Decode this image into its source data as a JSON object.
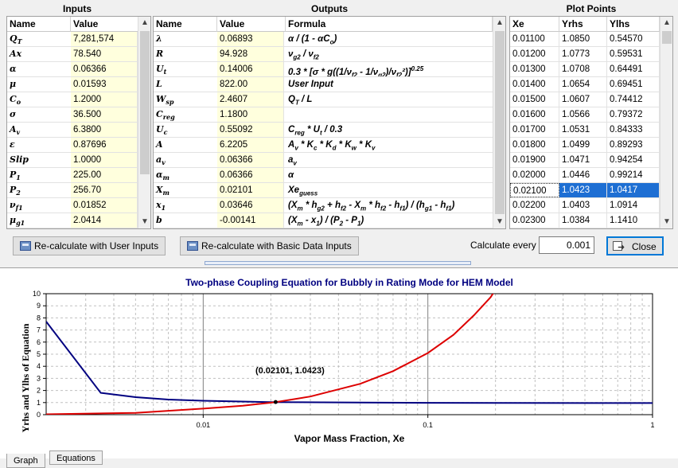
{
  "headers": {
    "inputs": "Inputs",
    "outputs": "Outputs",
    "plot_points": "Plot Points"
  },
  "inputs_table": {
    "columns": [
      "Name",
      "Value"
    ],
    "rows": [
      {
        "name": "Q",
        "sub": "T",
        "value": "7,281,574"
      },
      {
        "name": "Ax",
        "sub": "",
        "value": "78.540"
      },
      {
        "name": "α",
        "sub": "",
        "value": "0.06366"
      },
      {
        "name": "μ",
        "sub": "",
        "value": "0.01593"
      },
      {
        "name": "C",
        "sub": "o",
        "value": "1.2000"
      },
      {
        "name": "σ",
        "sub": "",
        "value": "36.500"
      },
      {
        "name": "A",
        "sub": "v",
        "value": "6.3800"
      },
      {
        "name": "ε",
        "sub": "",
        "value": "0.87696"
      },
      {
        "name": "Slip",
        "sub": "",
        "value": "1.0000"
      },
      {
        "name": "P",
        "sub": "1",
        "value": "225.00"
      },
      {
        "name": "P",
        "sub": "2",
        "value": "256.70"
      },
      {
        "name": "ν",
        "sub": "f1",
        "value": "0.01852"
      },
      {
        "name": "μ",
        "sub": "g1",
        "value": "2.0414"
      }
    ]
  },
  "outputs_table": {
    "columns": [
      "Name",
      "Value",
      "Formula"
    ],
    "rows": [
      {
        "name": "λ",
        "sub": "",
        "value": "0.06893",
        "formula": "α / (1 - αC",
        "fsub": "o",
        "ftail": ")"
      },
      {
        "name": "R",
        "sub": "",
        "value": "94.928",
        "formula": "ν",
        "fsub": "g2",
        "ftail": " / ν",
        "fsub2": "f2",
        "ftail2": ""
      },
      {
        "name": "U",
        "sub": "t",
        "value": "0.14006",
        "formula": "0.3 * [σ * g((1/ν",
        "fsub": "f2",
        "ftail": " - 1/ν",
        "fsub2": "g2",
        "ftail2": ")/ν",
        "fsub3": "f2",
        "ftail3": "²)]",
        "fsup": "0.25"
      },
      {
        "name": "L",
        "sub": "",
        "value": "822.00",
        "formula": "User Input",
        "fsub": "",
        "ftail": ""
      },
      {
        "name": "W",
        "sub": "sp",
        "value": "2.4607",
        "formula": "Q",
        "fsub": "T",
        "ftail": " / L"
      },
      {
        "name": "C",
        "sub": "reg",
        "value": "1.1800",
        "formula": "",
        "fsub": "",
        "ftail": ""
      },
      {
        "name": "U",
        "sub": "c",
        "value": "0.55092",
        "formula": "C",
        "fsub": "reg",
        "ftail": " * U",
        "fsub2": "t",
        "ftail2": " / 0.3"
      },
      {
        "name": "A",
        "sub": "",
        "value": "6.2205",
        "formula": "A",
        "fsub": "v",
        "ftail": " * K",
        "fsub2": "c",
        "ftail2": " * K",
        "fsub3": "d",
        "ftail3": " * K",
        "fsub4": "w",
        "ftail4": " * K",
        "fsub5": "v",
        "ftail5": ""
      },
      {
        "name": "a",
        "sub": "v",
        "value": "0.06366",
        "formula": "a",
        "fsub": "v",
        "ftail": ""
      },
      {
        "name": "α",
        "sub": "m",
        "value": "0.06366",
        "formula": "α",
        "fsub": "",
        "ftail": ""
      },
      {
        "name": "X",
        "sub": "m",
        "value": "0.02101",
        "formula": "Xe",
        "fsub": "guess",
        "ftail": ""
      },
      {
        "name": "x",
        "sub": "1",
        "value": "0.03646",
        "formula": "(X",
        "fsub": "m",
        "ftail": " * h",
        "fsub2": "g2",
        "ftail2": " + h",
        "fsub3": "f2",
        "ftail3": " - X",
        "fsub4": "m",
        "ftail4": " * h",
        "fsub5": "f2",
        "ftail5": " - h",
        "fsub6": "f1",
        "ftail6": ") / (h",
        "fsub7": "g1",
        "ftail7": " - h",
        "fsub8": "f1",
        "ftail8": ")"
      },
      {
        "name": "b",
        "sub": "",
        "value": "-0.00141",
        "formula": "(X",
        "fsub": "m",
        "ftail": " - x",
        "fsub2": "1",
        "ftail2": ") / (P",
        "fsub3": "2",
        "ftail3": " - P",
        "fsub4": "1",
        "ftail4": ")"
      }
    ]
  },
  "plot_table": {
    "columns": [
      "Xe",
      "Yrhs",
      "Ylhs"
    ],
    "selected_index": 10,
    "rows": [
      [
        "0.01100",
        "1.0850",
        "0.54570"
      ],
      [
        "0.01200",
        "1.0773",
        "0.59531"
      ],
      [
        "0.01300",
        "1.0708",
        "0.64491"
      ],
      [
        "0.01400",
        "1.0654",
        "0.69451"
      ],
      [
        "0.01500",
        "1.0607",
        "0.74412"
      ],
      [
        "0.01600",
        "1.0566",
        "0.79372"
      ],
      [
        "0.01700",
        "1.0531",
        "0.84333"
      ],
      [
        "0.01800",
        "1.0499",
        "0.89293"
      ],
      [
        "0.01900",
        "1.0471",
        "0.94254"
      ],
      [
        "0.02000",
        "1.0446",
        "0.99214"
      ],
      [
        "0.02100",
        "1.0423",
        "1.0417"
      ],
      [
        "0.02200",
        "1.0403",
        "1.0914"
      ],
      [
        "0.02300",
        "1.0384",
        "1.1410"
      ]
    ]
  },
  "buttons": {
    "recalc_user": "Re-calculate with User Inputs",
    "recalc_basic": "Re-calculate with Basic Data Inputs",
    "calc_every_label": "Calculate every",
    "calc_every_value": "0.001",
    "close": "Close"
  },
  "tabs": [
    "Graph",
    "Equations"
  ],
  "colors": {
    "rhs": "#000080",
    "lhs": "#dd0000",
    "selected": "#1e6fd3",
    "title": "#000080"
  },
  "chart_data": {
    "type": "line",
    "title": "Two-phase Coupling Equation for Bubbly in Rating Mode for HEM Model",
    "xlabel": "Vapor Mass Fraction, Xe",
    "ylabel": "Yrhs and Ylhs of Equation",
    "x_scale": "log",
    "xlim": [
      0.002,
      1
    ],
    "ylim": [
      0,
      10
    ],
    "x_ticks": [
      "0.01",
      "0.1",
      "1"
    ],
    "y_ticks": [
      "0",
      "1",
      "2",
      "3",
      "4",
      "5",
      "6",
      "7",
      "8",
      "9",
      "10"
    ],
    "grid": true,
    "annotation": {
      "text": "(0.02101, 1.0423)",
      "x": 0.02101,
      "y": 1.0423
    },
    "series": [
      {
        "key": "rhs",
        "x": [
          0.002,
          0.0035,
          0.005,
          0.007,
          0.01,
          0.02,
          0.05,
          0.1,
          0.2,
          0.5,
          1
        ],
        "y": [
          7.7,
          1.8,
          1.45,
          1.25,
          1.15,
          1.04,
          1.0,
          0.98,
          0.97,
          0.96,
          0.96
        ]
      },
      {
        "key": "lhs",
        "x": [
          0.002,
          0.005,
          0.01,
          0.015,
          0.02101,
          0.03,
          0.05,
          0.07,
          0.1,
          0.13,
          0.16,
          0.19
        ],
        "y": [
          0.03,
          0.15,
          0.5,
          0.74,
          1.04,
          1.5,
          2.55,
          3.6,
          5.1,
          6.6,
          8.2,
          9.7
        ]
      }
    ]
  }
}
